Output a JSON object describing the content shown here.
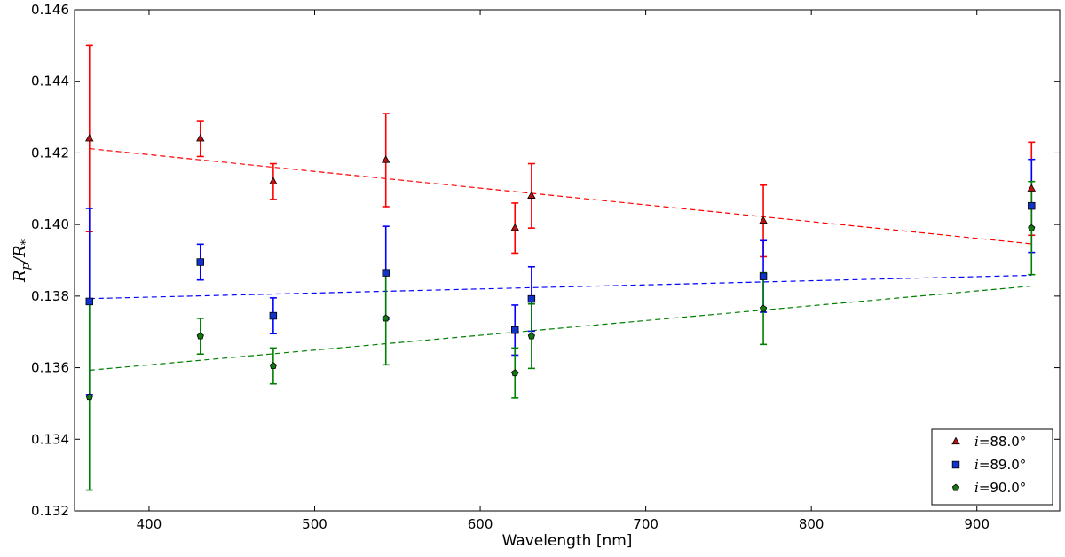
{
  "chart_data": {
    "type": "scatter",
    "xlabel": "Wavelength [nm]",
    "ylabel_main": "R",
    "ylabel_sub1": "p",
    "ylabel_sep": "/R",
    "ylabel_sub2": "*",
    "xlim": [
      355,
      950
    ],
    "ylim": [
      0.132,
      0.146
    ],
    "xticks": [
      400,
      500,
      600,
      700,
      800,
      900
    ],
    "yticks": [
      0.132,
      0.134,
      0.136,
      0.138,
      0.14,
      0.142,
      0.144,
      0.146
    ],
    "ytick_labels": [
      "0.132",
      "0.134",
      "0.136",
      "0.138",
      "0.140",
      "0.142",
      "0.144",
      "0.146"
    ],
    "grid": false,
    "legend_position": "bottom-right",
    "series": [
      {
        "name_var": "i",
        "name_value": "=88.0°",
        "marker": "triangle",
        "color": "#ff0000",
        "fill": "#bb1111",
        "points": [
          {
            "x": 364,
            "y": 0.1424,
            "err": 0.0026
          },
          {
            "x": 431,
            "y": 0.1424,
            "err": 0.0005
          },
          {
            "x": 475,
            "y": 0.1412,
            "err": 0.0005
          },
          {
            "x": 543,
            "y": 0.1418,
            "err": 0.0013
          },
          {
            "x": 621,
            "y": 0.1399,
            "err": 0.0007
          },
          {
            "x": 631,
            "y": 0.1408,
            "err": 0.0009
          },
          {
            "x": 771,
            "y": 0.1401,
            "err": 0.001
          },
          {
            "x": 933,
            "y": 0.141,
            "err": 0.0013
          }
        ],
        "fit": {
          "x": [
            364,
            933
          ],
          "y": [
            0.14212,
            0.13946
          ]
        }
      },
      {
        "name_var": "i",
        "name_value": "=89.0°",
        "marker": "square",
        "color": "#0000ff",
        "fill": "#1133cc",
        "points": [
          {
            "x": 364,
            "y": 0.13785,
            "err": 0.0026
          },
          {
            "x": 431,
            "y": 0.13895,
            "err": 0.0005
          },
          {
            "x": 475,
            "y": 0.13745,
            "err": 0.0005
          },
          {
            "x": 543,
            "y": 0.13865,
            "err": 0.0013
          },
          {
            "x": 621,
            "y": 0.13705,
            "err": 0.0007
          },
          {
            "x": 631,
            "y": 0.13792,
            "err": 0.0009
          },
          {
            "x": 771,
            "y": 0.13855,
            "err": 0.001
          },
          {
            "x": 933,
            "y": 0.14052,
            "err": 0.0013
          }
        ],
        "fit": {
          "x": [
            364,
            933
          ],
          "y": [
            0.13793,
            0.13858
          ]
        }
      },
      {
        "name_var": "i",
        "name_value": "=90.0°",
        "marker": "pentagon",
        "color": "#008000",
        "fill": "#117711",
        "points": [
          {
            "x": 364,
            "y": 0.13518,
            "err": 0.0026
          },
          {
            "x": 431,
            "y": 0.13688,
            "err": 0.0005
          },
          {
            "x": 475,
            "y": 0.13605,
            "err": 0.0005
          },
          {
            "x": 543,
            "y": 0.13738,
            "err": 0.0013
          },
          {
            "x": 621,
            "y": 0.13585,
            "err": 0.0007
          },
          {
            "x": 631,
            "y": 0.13688,
            "err": 0.0009
          },
          {
            "x": 771,
            "y": 0.13765,
            "err": 0.001
          },
          {
            "x": 933,
            "y": 0.1399,
            "err": 0.0013
          }
        ],
        "fit": {
          "x": [
            364,
            933
          ],
          "y": [
            0.13593,
            0.13828
          ]
        }
      }
    ]
  }
}
